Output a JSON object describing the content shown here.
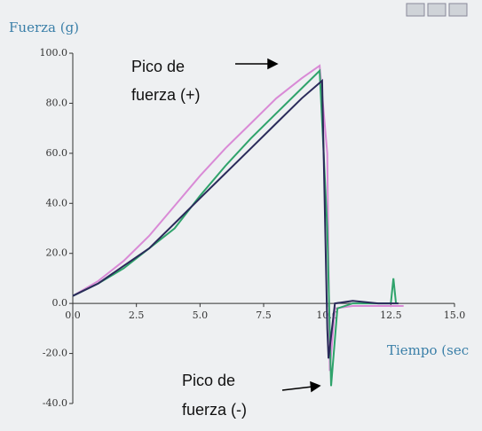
{
  "chart_data": {
    "type": "line",
    "title": "Fuerza  (g)",
    "x_label": "Tiempo (sec",
    "xlim": [
      0,
      15
    ],
    "ylim": [
      -40,
      100
    ],
    "xticks": [
      {
        "value": 0,
        "label": "0.0"
      },
      2.5,
      {
        "value": 5,
        "label": "5.0"
      },
      7.5,
      {
        "value": 10,
        "label": "10.0"
      },
      12.5,
      {
        "value": 15,
        "label": "15.0"
      }
    ],
    "yticks": [
      {
        "value": 100,
        "label": "100.0"
      },
      {
        "value": 80,
        "label": "80.0"
      },
      {
        "value": 60,
        "label": "60.0"
      },
      {
        "value": 40,
        "label": "40.0"
      },
      {
        "value": 20,
        "label": "20.0"
      },
      {
        "value": 0,
        "label": "0.0"
      },
      {
        "value": -20,
        "label": "-20.0"
      },
      {
        "value": -40,
        "label": "-40.0"
      }
    ],
    "series": [
      {
        "color": "#d98ad6",
        "x": [
          0,
          1,
          2,
          3,
          4,
          5,
          6,
          7,
          8,
          9,
          9.7,
          10,
          10.1,
          10.3,
          11,
          12,
          13
        ],
        "values": [
          3,
          9,
          17,
          27,
          39,
          51,
          62,
          72,
          82,
          90,
          95,
          60,
          -27,
          -2,
          -1,
          -1,
          -1
        ]
      },
      {
        "color": "#2fa36b",
        "x": [
          0,
          1,
          2,
          3,
          4,
          5,
          6,
          7,
          8,
          9,
          9.7,
          10,
          10.15,
          10.4,
          11,
          12,
          12.5,
          12.6,
          12.7
        ],
        "values": [
          3,
          8,
          14,
          22,
          30,
          43,
          55,
          66,
          76,
          86,
          93,
          30,
          -33,
          -2,
          0,
          0,
          0,
          10,
          0
        ]
      },
      {
        "color": "#2a2a5a",
        "x": [
          0,
          1,
          2,
          3,
          4,
          5,
          6,
          7,
          8,
          9,
          9.8,
          10,
          10.05,
          10.3,
          11,
          12,
          12.8
        ],
        "values": [
          3,
          8,
          15,
          22,
          32,
          42,
          52,
          62,
          72,
          82,
          89,
          -10,
          -22,
          0,
          1,
          0,
          0
        ]
      }
    ],
    "annotations": [
      {
        "lines": [
          "Pico de",
          "fuerza (+)"
        ]
      },
      {
        "lines": [
          "Pico de",
          "fuerza (-)"
        ]
      }
    ]
  }
}
